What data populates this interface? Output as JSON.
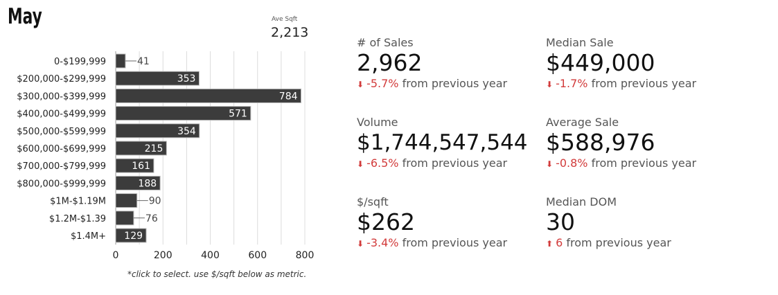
{
  "page": {
    "title": "May",
    "ave_sqft_label": "Ave Sqft",
    "ave_sqft_value": "2,213",
    "footnote": "*click to select.  use $/sqft below as metric."
  },
  "metrics": [
    {
      "label": "# of Sales",
      "value": "2,962",
      "change": "-5.7%",
      "direction": "down",
      "suffix": "from previous year"
    },
    {
      "label": "Median Sale",
      "value": "$449,000",
      "change": "-1.7%",
      "direction": "down",
      "suffix": "from previous year"
    },
    {
      "label": "Volume",
      "value": "$1,744,547,544",
      "change": "-6.5%",
      "direction": "down",
      "suffix": "from previous year"
    },
    {
      "label": "Average Sale",
      "value": "$588,976",
      "change": "-0.8%",
      "direction": "down",
      "suffix": "from previous year"
    },
    {
      "label": "$/sqft",
      "value": "$262",
      "change": "-3.4%",
      "direction": "down",
      "suffix": "from previous year"
    },
    {
      "label": "Median DOM",
      "value": "30",
      "change": "6",
      "direction": "up",
      "suffix": "from previous year"
    }
  ],
  "colors": {
    "bar": "#3c3c3c",
    "negative": "#d23b3b",
    "gridline": "#dcdcdc"
  },
  "chart_data": {
    "type": "bar",
    "orientation": "horizontal",
    "categories": [
      "0-$199,999",
      "$200,000-$299,999",
      "$300,000-$399,999",
      "$400,000-$499,999",
      "$500,000-$599,999",
      "$600,000-$699,999",
      "$700,000-$799,999",
      "$800,000-$999,999",
      "$1M-$1.19M",
      "$1.2M-$1.39",
      "$1.4M+"
    ],
    "values": [
      41,
      353,
      784,
      571,
      354,
      215,
      161,
      188,
      90,
      76,
      129
    ],
    "xlim": [
      0,
      800
    ],
    "xticks": [
      0,
      200,
      400,
      600,
      800
    ],
    "grid": true
  }
}
